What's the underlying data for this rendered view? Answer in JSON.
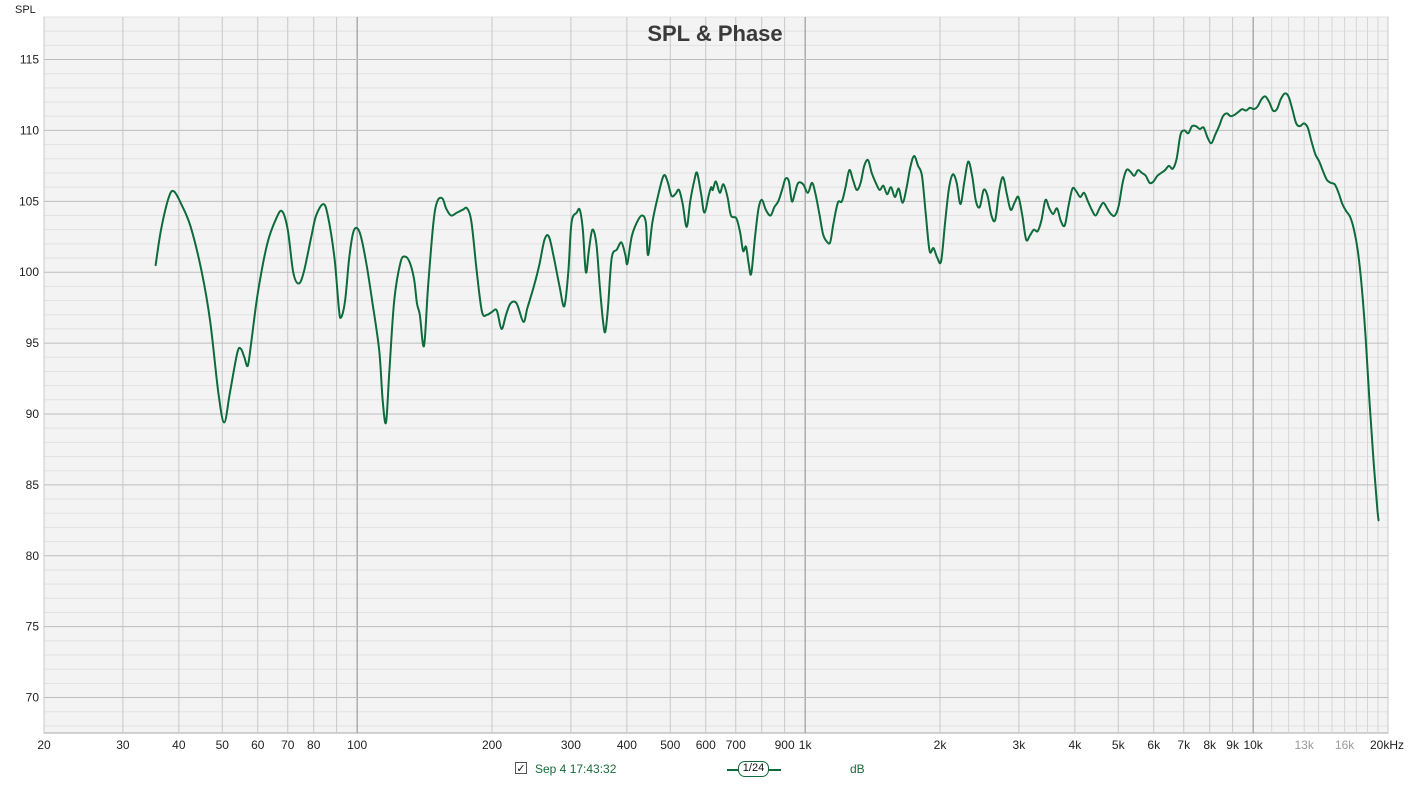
{
  "chart_data": {
    "type": "line",
    "title": "SPL & Phase",
    "ylabel": "SPL",
    "xscale": "log",
    "xlim": [
      20,
      20000
    ],
    "ylim": [
      67.5,
      118
    ],
    "y_ticks": [
      70,
      75,
      80,
      85,
      90,
      95,
      100,
      105,
      110,
      115
    ],
    "x_ticks": [
      {
        "v": 20,
        "label": "20"
      },
      {
        "v": 30,
        "label": "30"
      },
      {
        "v": 40,
        "label": "40"
      },
      {
        "v": 50,
        "label": "50"
      },
      {
        "v": 60,
        "label": "60"
      },
      {
        "v": 70,
        "label": "70"
      },
      {
        "v": 80,
        "label": "80"
      },
      {
        "v": 100,
        "label": "100"
      },
      {
        "v": 200,
        "label": "200"
      },
      {
        "v": 300,
        "label": "300"
      },
      {
        "v": 400,
        "label": "400"
      },
      {
        "v": 500,
        "label": "500"
      },
      {
        "v": 600,
        "label": "600"
      },
      {
        "v": 700,
        "label": "700"
      },
      {
        "v": 900,
        "label": "900"
      },
      {
        "v": 1000,
        "label": "1k"
      },
      {
        "v": 2000,
        "label": "2k"
      },
      {
        "v": 3000,
        "label": "3k"
      },
      {
        "v": 4000,
        "label": "4k"
      },
      {
        "v": 5000,
        "label": "5k"
      },
      {
        "v": 6000,
        "label": "6k"
      },
      {
        "v": 7000,
        "label": "7k"
      },
      {
        "v": 8000,
        "label": "8k"
      },
      {
        "v": 9000,
        "label": "9k"
      },
      {
        "v": 10000,
        "label": "10k"
      },
      {
        "v": 13000,
        "label": "13k",
        "light": true
      },
      {
        "v": 16000,
        "label": "16k",
        "light": true
      },
      {
        "v": 20000,
        "label": "20kHz"
      }
    ],
    "grid": true,
    "series": [
      {
        "name": "Sep 4 17:43:32",
        "color": "#0e6b3b",
        "points": [
          [
            35.5,
            100.5
          ],
          [
            36.5,
            103
          ],
          [
            38,
            105.3
          ],
          [
            39,
            105.7
          ],
          [
            40.5,
            104.8
          ],
          [
            42.5,
            103.2
          ],
          [
            45,
            100
          ],
          [
            47,
            96.5
          ],
          [
            49,
            91.5
          ],
          [
            50.5,
            89.4
          ],
          [
            52,
            91.5
          ],
          [
            54,
            94.3
          ],
          [
            55,
            94.6
          ],
          [
            56,
            94
          ],
          [
            57,
            93.4
          ],
          [
            58,
            95
          ],
          [
            60,
            98.5
          ],
          [
            63,
            102
          ],
          [
            66,
            103.8
          ],
          [
            68,
            104.3
          ],
          [
            70,
            103
          ],
          [
            72,
            100
          ],
          [
            74,
            99.2
          ],
          [
            76,
            100
          ],
          [
            79,
            102.5
          ],
          [
            81,
            104
          ],
          [
            84,
            104.8
          ],
          [
            86,
            104
          ],
          [
            89,
            101
          ],
          [
            91,
            97.5
          ],
          [
            92,
            96.8
          ],
          [
            94,
            98
          ],
          [
            96,
            101
          ],
          [
            98,
            102.8
          ],
          [
            100,
            103.1
          ],
          [
            102,
            102.5
          ],
          [
            105,
            100.5
          ],
          [
            108,
            98
          ],
          [
            112,
            94.5
          ],
          [
            114,
            91
          ],
          [
            116,
            89.4
          ],
          [
            118,
            93
          ],
          [
            121,
            98
          ],
          [
            125,
            100.7
          ],
          [
            128,
            101.1
          ],
          [
            131,
            100.7
          ],
          [
            134,
            99.5
          ],
          [
            136,
            97.8
          ],
          [
            138,
            97
          ],
          [
            141,
            94.8
          ],
          [
            144,
            99
          ],
          [
            148,
            103.5
          ],
          [
            151,
            105
          ],
          [
            155,
            105.2
          ],
          [
            158,
            104.5
          ],
          [
            162,
            104
          ],
          [
            167,
            104.2
          ],
          [
            172,
            104.4
          ],
          [
            176,
            104.5
          ],
          [
            180,
            103.5
          ],
          [
            185,
            100
          ],
          [
            190,
            97.2
          ],
          [
            195,
            97
          ],
          [
            200,
            97.2
          ],
          [
            205,
            97.3
          ],
          [
            210,
            96
          ],
          [
            215,
            97
          ],
          [
            220,
            97.8
          ],
          [
            227,
            97.8
          ],
          [
            235,
            96.5
          ],
          [
            240,
            97.5
          ],
          [
            248,
            99
          ],
          [
            255,
            100.5
          ],
          [
            262,
            102.3
          ],
          [
            268,
            102.5
          ],
          [
            275,
            101
          ],
          [
            283,
            99
          ],
          [
            290,
            97.6
          ],
          [
            296,
            100
          ],
          [
            301,
            103.5
          ],
          [
            309,
            104.2
          ],
          [
            314,
            104.4
          ],
          [
            319,
            103
          ],
          [
            324,
            100
          ],
          [
            329,
            101.5
          ],
          [
            335,
            103
          ],
          [
            342,
            102
          ],
          [
            348,
            99
          ],
          [
            354,
            96.5
          ],
          [
            358,
            95.8
          ],
          [
            363,
            97.5
          ],
          [
            370,
            101
          ],
          [
            380,
            101.6
          ],
          [
            389,
            102.1
          ],
          [
            397,
            101.2
          ],
          [
            401,
            100.6
          ],
          [
            410,
            102.5
          ],
          [
            421,
            103.5
          ],
          [
            432,
            104
          ],
          [
            441,
            103.5
          ],
          [
            446,
            101.2
          ],
          [
            456,
            103.5
          ],
          [
            468,
            105.2
          ],
          [
            483,
            106.8
          ],
          [
            493,
            106.4
          ],
          [
            503,
            105.4
          ],
          [
            513,
            105.5
          ],
          [
            523,
            105.8
          ],
          [
            533,
            104.8
          ],
          [
            544,
            103.2
          ],
          [
            554,
            105
          ],
          [
            566,
            106.5
          ],
          [
            574,
            107
          ],
          [
            586,
            105.5
          ],
          [
            596,
            104.2
          ],
          [
            610,
            105.5
          ],
          [
            617,
            106
          ],
          [
            622,
            105.8
          ],
          [
            632,
            106.4
          ],
          [
            645,
            105.6
          ],
          [
            657,
            106.2
          ],
          [
            671,
            105.3
          ],
          [
            683,
            104
          ],
          [
            702,
            103.8
          ],
          [
            716,
            102.8
          ],
          [
            727,
            101.5
          ],
          [
            738,
            101.8
          ],
          [
            748,
            100.6
          ],
          [
            758,
            99.9
          ],
          [
            773,
            102.5
          ],
          [
            787,
            104.5
          ],
          [
            801,
            105.1
          ],
          [
            817,
            104.4
          ],
          [
            837,
            104
          ],
          [
            854,
            104.6
          ],
          [
            871,
            105
          ],
          [
            890,
            105.9
          ],
          [
            904,
            106.6
          ],
          [
            920,
            106.4
          ],
          [
            934,
            105
          ],
          [
            949,
            105.6
          ],
          [
            965,
            106.3
          ],
          [
            990,
            106.2
          ],
          [
            1014,
            105.6
          ],
          [
            1036,
            106.3
          ],
          [
            1055,
            105.5
          ],
          [
            1076,
            104.1
          ],
          [
            1096,
            102.7
          ],
          [
            1115,
            102.2
          ],
          [
            1137,
            102.1
          ],
          [
            1156,
            103.4
          ],
          [
            1183,
            104.9
          ],
          [
            1208,
            105
          ],
          [
            1231,
            106
          ],
          [
            1255,
            107.2
          ],
          [
            1279,
            106.5
          ],
          [
            1304,
            105.8
          ],
          [
            1330,
            106.3
          ],
          [
            1355,
            107.5
          ],
          [
            1382,
            107.9
          ],
          [
            1408,
            107
          ],
          [
            1438,
            106.3
          ],
          [
            1467,
            105.8
          ],
          [
            1495,
            106.1
          ],
          [
            1524,
            105.5
          ],
          [
            1555,
            106
          ],
          [
            1586,
            105.3
          ],
          [
            1618,
            105.9
          ],
          [
            1650,
            104.9
          ],
          [
            1683,
            105.9
          ],
          [
            1717,
            107.4
          ],
          [
            1751,
            108.2
          ],
          [
            1787,
            107.5
          ],
          [
            1823,
            106.8
          ],
          [
            1859,
            104.1
          ],
          [
            1896,
            101.5
          ],
          [
            1934,
            101.7
          ],
          [
            1973,
            101
          ],
          [
            2012,
            100.8
          ],
          [
            2053,
            103.5
          ],
          [
            2094,
            105.9
          ],
          [
            2136,
            106.9
          ],
          [
            2179,
            106.3
          ],
          [
            2222,
            104.8
          ],
          [
            2267,
            106.4
          ],
          [
            2312,
            107.8
          ],
          [
            2359,
            106.8
          ],
          [
            2406,
            105
          ],
          [
            2454,
            104.6
          ],
          [
            2503,
            105.8
          ],
          [
            2553,
            105.4
          ],
          [
            2605,
            104
          ],
          [
            2657,
            103.7
          ],
          [
            2710,
            105.7
          ],
          [
            2764,
            106.7
          ],
          [
            2820,
            105.5
          ],
          [
            2876,
            104.4
          ],
          [
            2934,
            104.9
          ],
          [
            2993,
            105.3
          ],
          [
            3053,
            104
          ],
          [
            3114,
            102.3
          ],
          [
            3176,
            102.6
          ],
          [
            3240,
            103
          ],
          [
            3305,
            102.9
          ],
          [
            3371,
            103.7
          ],
          [
            3439,
            105.1
          ],
          [
            3508,
            104.5
          ],
          [
            3578,
            104.1
          ],
          [
            3650,
            104.5
          ],
          [
            3723,
            103.6
          ],
          [
            3797,
            103.3
          ],
          [
            3873,
            104.7
          ],
          [
            3951,
            105.9
          ],
          [
            4030,
            105.7
          ],
          [
            4111,
            105.3
          ],
          [
            4193,
            105.6
          ],
          [
            4277,
            105
          ],
          [
            4363,
            104.4
          ],
          [
            4450,
            104
          ],
          [
            4539,
            104.5
          ],
          [
            4630,
            104.9
          ],
          [
            4723,
            104.5
          ],
          [
            4817,
            104.1
          ],
          [
            4914,
            104
          ],
          [
            5012,
            104.7
          ],
          [
            5113,
            106.3
          ],
          [
            5215,
            107.2
          ],
          [
            5320,
            107.1
          ],
          [
            5426,
            106.8
          ],
          [
            5535,
            107.2
          ],
          [
            5646,
            107
          ],
          [
            5759,
            106.8
          ],
          [
            5874,
            106.3
          ],
          [
            5992,
            106.4
          ],
          [
            6112,
            106.8
          ],
          [
            6234,
            107
          ],
          [
            6359,
            107.2
          ],
          [
            6486,
            107.5
          ],
          [
            6616,
            107.3
          ],
          [
            6749,
            108
          ],
          [
            6884,
            109.7
          ],
          [
            7022,
            110
          ],
          [
            7163,
            109.8
          ],
          [
            7306,
            110.3
          ],
          [
            7453,
            110.3
          ],
          [
            7602,
            110.1
          ],
          [
            7754,
            110.2
          ],
          [
            7910,
            109.5
          ],
          [
            8068,
            109.1
          ],
          [
            8230,
            109.7
          ],
          [
            8395,
            110.3
          ],
          [
            8563,
            111
          ],
          [
            8734,
            111.2
          ],
          [
            8909,
            111
          ],
          [
            9087,
            111.1
          ],
          [
            9269,
            111.3
          ],
          [
            9455,
            111.5
          ],
          [
            9644,
            111.4
          ],
          [
            9837,
            111.6
          ],
          [
            10034,
            111.5
          ],
          [
            10234,
            111.7
          ],
          [
            10439,
            112.2
          ],
          [
            10648,
            112.4
          ],
          [
            10861,
            112
          ],
          [
            11078,
            111.4
          ],
          [
            11300,
            111.5
          ],
          [
            11526,
            112.2
          ],
          [
            11756,
            112.6
          ],
          [
            11991,
            112.4
          ],
          [
            12231,
            111.5
          ],
          [
            12476,
            110.5
          ],
          [
            12725,
            110.3
          ],
          [
            12980,
            110.5
          ],
          [
            13240,
            110.2
          ],
          [
            13504,
            109.2
          ],
          [
            13774,
            108.3
          ],
          [
            14050,
            107.8
          ],
          [
            14331,
            107.1
          ],
          [
            14618,
            106.5
          ],
          [
            14910,
            106.3
          ],
          [
            15208,
            106.2
          ],
          [
            15512,
            105.6
          ],
          [
            15823,
            104.8
          ],
          [
            16139,
            104.3
          ],
          [
            16462,
            103.9
          ],
          [
            16791,
            103
          ],
          [
            17127,
            101.5
          ],
          [
            17470,
            99
          ],
          [
            17819,
            95.5
          ],
          [
            18175,
            91
          ],
          [
            18539,
            87
          ],
          [
            18910,
            83.5
          ],
          [
            19050,
            82.5
          ]
        ]
      }
    ]
  },
  "legend": {
    "checkbox_mark": "✓",
    "measurement_name": "Sep 4 17:43:32",
    "smoothing_label": "1/24",
    "unit_label": "dB"
  }
}
